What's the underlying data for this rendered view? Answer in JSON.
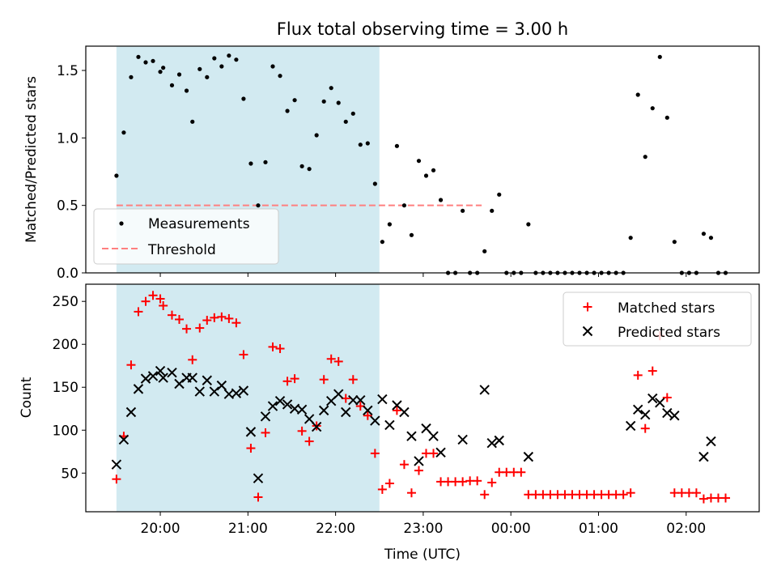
{
  "chart_data": {
    "title": "Flux total observing time = 3.00 h",
    "colors": {
      "shade": "#add8e6",
      "measurement": "#000000",
      "threshold": "#ff7f7f",
      "matched": "#ff0000",
      "predicted": "#000000"
    },
    "shaded_interval": [
      "19:30",
      "22:30"
    ],
    "x_axis": {
      "label": "Time (UTC)",
      "range": [
        "19:09",
        "02:50"
      ],
      "ticks": [
        "20:00",
        "21:00",
        "22:00",
        "23:00",
        "00:00",
        "01:00",
        "02:00"
      ]
    },
    "top": {
      "type": "scatter",
      "ylabel": "Matched/Predicted stars",
      "ylim": [
        0,
        1.68
      ],
      "yticks": [
        "0.0",
        "0.5",
        "1.0",
        "1.5"
      ],
      "legend_position": "lower-left",
      "threshold": {
        "name": "Threshold",
        "value": 0.5,
        "x": [
          "19:30",
          "23:40"
        ]
      },
      "series": [
        {
          "name": "Measurements",
          "points": [
            [
              "19:30",
              0.72
            ],
            [
              "19:35",
              1.04
            ],
            [
              "19:40",
              1.45
            ],
            [
              "19:45",
              1.6
            ],
            [
              "19:50",
              1.56
            ],
            [
              "19:55",
              1.57
            ],
            [
              "20:00",
              1.49
            ],
            [
              "20:02",
              1.52
            ],
            [
              "20:08",
              1.39
            ],
            [
              "20:13",
              1.47
            ],
            [
              "20:18",
              1.35
            ],
            [
              "20:22",
              1.12
            ],
            [
              "20:27",
              1.51
            ],
            [
              "20:32",
              1.45
            ],
            [
              "20:37",
              1.59
            ],
            [
              "20:42",
              1.53
            ],
            [
              "20:47",
              1.61
            ],
            [
              "20:52",
              1.58
            ],
            [
              "20:57",
              1.29
            ],
            [
              "21:02",
              0.81
            ],
            [
              "21:07",
              0.5
            ],
            [
              "21:12",
              0.82
            ],
            [
              "21:17",
              1.53
            ],
            [
              "21:22",
              1.46
            ],
            [
              "21:27",
              1.2
            ],
            [
              "21:32",
              1.28
            ],
            [
              "21:37",
              0.79
            ],
            [
              "21:42",
              0.77
            ],
            [
              "21:47",
              1.02
            ],
            [
              "21:52",
              1.27
            ],
            [
              "21:57",
              1.37
            ],
            [
              "22:02",
              1.26
            ],
            [
              "22:07",
              1.12
            ],
            [
              "22:12",
              1.18
            ],
            [
              "22:17",
              0.95
            ],
            [
              "22:22",
              0.96
            ],
            [
              "22:27",
              0.66
            ],
            [
              "22:32",
              0.23
            ],
            [
              "22:37",
              0.36
            ],
            [
              "22:42",
              0.94
            ],
            [
              "22:47",
              0.5
            ],
            [
              "22:52",
              0.28
            ],
            [
              "22:57",
              0.83
            ],
            [
              "23:02",
              0.72
            ],
            [
              "23:07",
              0.76
            ],
            [
              "23:12",
              0.54
            ],
            [
              "23:17",
              0.0
            ],
            [
              "23:22",
              0.0
            ],
            [
              "23:27",
              0.46
            ],
            [
              "23:32",
              0.0
            ],
            [
              "23:37",
              0.0
            ],
            [
              "23:42",
              0.16
            ],
            [
              "23:47",
              0.46
            ],
            [
              "23:52",
              0.58
            ],
            [
              "23:57",
              0.0
            ],
            [
              "00:02",
              0.0
            ],
            [
              "00:07",
              0.0
            ],
            [
              "00:12",
              0.36
            ],
            [
              "00:17",
              0.0
            ],
            [
              "00:22",
              0.0
            ],
            [
              "00:27",
              0.0
            ],
            [
              "00:32",
              0.0
            ],
            [
              "00:37",
              0.0
            ],
            [
              "00:42",
              0.0
            ],
            [
              "00:47",
              0.0
            ],
            [
              "00:52",
              0.0
            ],
            [
              "00:57",
              0.0
            ],
            [
              "01:02",
              0.0
            ],
            [
              "01:07",
              0.0
            ],
            [
              "01:12",
              0.0
            ],
            [
              "01:17",
              0.0
            ],
            [
              "01:22",
              0.26
            ],
            [
              "01:27",
              1.32
            ],
            [
              "01:32",
              0.86
            ],
            [
              "01:37",
              1.22
            ],
            [
              "01:42",
              1.6
            ],
            [
              "01:47",
              1.15
            ],
            [
              "01:52",
              0.23
            ],
            [
              "01:57",
              0.0
            ],
            [
              "02:02",
              0.0
            ],
            [
              "02:07",
              0.0
            ],
            [
              "02:12",
              0.29
            ],
            [
              "02:17",
              0.26
            ],
            [
              "02:22",
              0.0
            ],
            [
              "02:27",
              0.0
            ]
          ]
        }
      ]
    },
    "bottom": {
      "type": "scatter",
      "ylabel": "Count",
      "ylim": [
        5,
        270
      ],
      "yticks": [
        "50",
        "100",
        "150",
        "200",
        "250"
      ],
      "legend_position": "upper-right",
      "series": [
        {
          "name": "Matched stars",
          "marker": "plus",
          "points": [
            [
              "19:30",
              43
            ],
            [
              "19:35",
              93
            ],
            [
              "19:40",
              176
            ],
            [
              "19:45",
              238
            ],
            [
              "19:50",
              250
            ],
            [
              "19:55",
              257
            ],
            [
              "20:00",
              253
            ],
            [
              "20:02",
              245
            ],
            [
              "20:08",
              234
            ],
            [
              "20:13",
              229
            ],
            [
              "20:18",
              218
            ],
            [
              "20:22",
              182
            ],
            [
              "20:27",
              219
            ],
            [
              "20:32",
              228
            ],
            [
              "20:37",
              231
            ],
            [
              "20:42",
              232
            ],
            [
              "20:47",
              230
            ],
            [
              "20:52",
              225
            ],
            [
              "20:57",
              188
            ],
            [
              "21:02",
              79
            ],
            [
              "21:07",
              22
            ],
            [
              "21:12",
              97
            ],
            [
              "21:17",
              197
            ],
            [
              "21:22",
              195
            ],
            [
              "21:27",
              157
            ],
            [
              "21:32",
              160
            ],
            [
              "21:37",
              99
            ],
            [
              "21:42",
              87
            ],
            [
              "21:47",
              105
            ],
            [
              "21:52",
              159
            ],
            [
              "21:57",
              183
            ],
            [
              "22:02",
              180
            ],
            [
              "22:07",
              137
            ],
            [
              "22:12",
              159
            ],
            [
              "22:17",
              128
            ],
            [
              "22:22",
              117
            ],
            [
              "22:27",
              73
            ],
            [
              "22:32",
              31
            ],
            [
              "22:37",
              38
            ],
            [
              "22:42",
              123
            ],
            [
              "22:47",
              60
            ],
            [
              "22:52",
              27
            ],
            [
              "22:57",
              53
            ],
            [
              "23:02",
              73
            ],
            [
              "23:07",
              73
            ],
            [
              "23:12",
              40
            ],
            [
              "23:17",
              40
            ],
            [
              "23:22",
              40
            ],
            [
              "23:27",
              40
            ],
            [
              "23:32",
              41
            ],
            [
              "23:37",
              41
            ],
            [
              "23:42",
              25
            ],
            [
              "23:47",
              39
            ],
            [
              "23:52",
              51
            ],
            [
              "23:57",
              51
            ],
            [
              "00:02",
              51
            ],
            [
              "00:07",
              51
            ],
            [
              "00:12",
              25
            ],
            [
              "00:17",
              25
            ],
            [
              "00:22",
              25
            ],
            [
              "00:27",
              25
            ],
            [
              "00:32",
              25
            ],
            [
              "00:37",
              25
            ],
            [
              "00:42",
              25
            ],
            [
              "00:47",
              25
            ],
            [
              "00:52",
              25
            ],
            [
              "00:57",
              25
            ],
            [
              "01:02",
              25
            ],
            [
              "01:07",
              25
            ],
            [
              "01:12",
              25
            ],
            [
              "01:17",
              25
            ],
            [
              "01:22",
              27
            ],
            [
              "01:27",
              164
            ],
            [
              "01:32",
              102
            ],
            [
              "01:37",
              169
            ],
            [
              "01:42",
              210
            ],
            [
              "01:47",
              138
            ],
            [
              "01:52",
              27
            ],
            [
              "01:57",
              27
            ],
            [
              "02:02",
              27
            ],
            [
              "02:07",
              27
            ],
            [
              "02:12",
              20
            ],
            [
              "02:17",
              21
            ],
            [
              "02:22",
              21
            ],
            [
              "02:27",
              21
            ]
          ]
        },
        {
          "name": "Predicted stars",
          "marker": "x",
          "points": [
            [
              "19:30",
              60
            ],
            [
              "19:35",
              89
            ],
            [
              "19:40",
              121
            ],
            [
              "19:45",
              148
            ],
            [
              "19:50",
              160
            ],
            [
              "19:55",
              163
            ],
            [
              "20:00",
              169
            ],
            [
              "20:02",
              161
            ],
            [
              "20:08",
              167
            ],
            [
              "20:13",
              154
            ],
            [
              "20:18",
              161
            ],
            [
              "20:22",
              161
            ],
            [
              "20:27",
              145
            ],
            [
              "20:32",
              158
            ],
            [
              "20:37",
              145
            ],
            [
              "20:42",
              152
            ],
            [
              "20:47",
              142
            ],
            [
              "20:52",
              143
            ],
            [
              "20:57",
              146
            ],
            [
              "21:02",
              98
            ],
            [
              "21:07",
              44
            ],
            [
              "21:12",
              116
            ],
            [
              "21:17",
              128
            ],
            [
              "21:22",
              134
            ],
            [
              "21:27",
              130
            ],
            [
              "21:32",
              125
            ],
            [
              "21:37",
              124
            ],
            [
              "21:42",
              113
            ],
            [
              "21:47",
              104
            ],
            [
              "21:52",
              123
            ],
            [
              "21:57",
              134
            ],
            [
              "22:02",
              142
            ],
            [
              "22:07",
              121
            ],
            [
              "22:12",
              135
            ],
            [
              "22:17",
              135
            ],
            [
              "22:22",
              123
            ],
            [
              "22:27",
              111
            ],
            [
              "22:32",
              136
            ],
            [
              "22:37",
              106
            ],
            [
              "22:42",
              129
            ],
            [
              "22:47",
              121
            ],
            [
              "22:52",
              93
            ],
            [
              "22:57",
              64
            ],
            [
              "23:02",
              102
            ],
            [
              "23:07",
              93
            ],
            [
              "23:12",
              74
            ],
            [
              "23:27",
              89
            ],
            [
              "23:42",
              147
            ],
            [
              "23:47",
              85
            ],
            [
              "23:52",
              88
            ],
            [
              "00:12",
              69
            ],
            [
              "01:22",
              105
            ],
            [
              "01:27",
              124
            ],
            [
              "01:32",
              118
            ],
            [
              "01:37",
              137
            ],
            [
              "01:42",
              132
            ],
            [
              "01:47",
              120
            ],
            [
              "01:52",
              117
            ],
            [
              "02:12",
              69
            ],
            [
              "02:17",
              87
            ]
          ]
        }
      ]
    }
  }
}
